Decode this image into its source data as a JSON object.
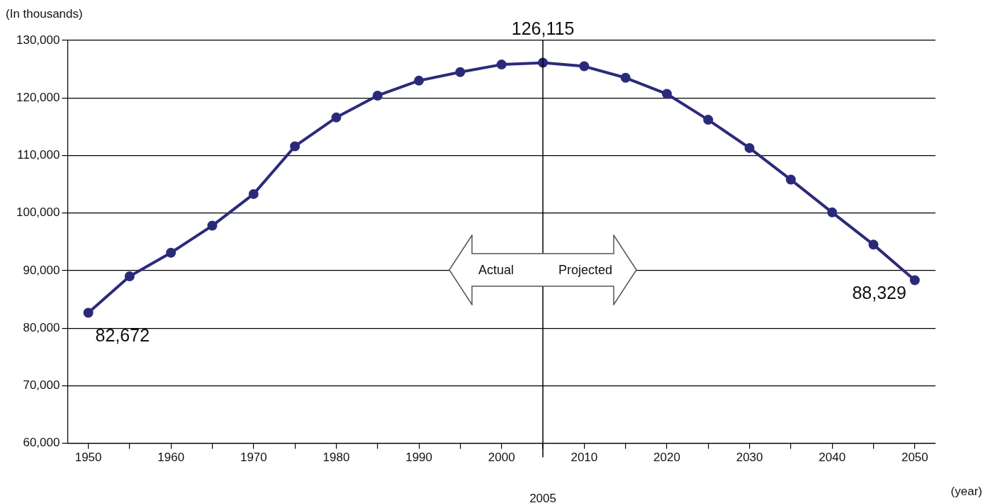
{
  "chart_data": {
    "type": "line",
    "ylabel": "(In thousands)",
    "xlabel": "(year)",
    "x": [
      1950,
      1955,
      1960,
      1965,
      1970,
      1975,
      1980,
      1985,
      1990,
      1995,
      2000,
      2005,
      2010,
      2015,
      2020,
      2025,
      2030,
      2035,
      2040,
      2045,
      2050
    ],
    "series": [
      {
        "color": "#2b2a7a",
        "values": [
          82672,
          89000,
          93100,
          97800,
          103300,
          111600,
          116600,
          120400,
          123000,
          124500,
          125800,
          126115,
          125500,
          123500,
          120700,
          116200,
          111300,
          105800,
          100100,
          94500,
          88329
        ],
        "value_labels": [
          "82,672",
          null,
          null,
          null,
          null,
          null,
          null,
          null,
          null,
          null,
          null,
          "126,115",
          null,
          null,
          null,
          null,
          null,
          null,
          null,
          null,
          "88,329"
        ]
      }
    ],
    "xlim": [
      1947.5,
      2052.5
    ],
    "xticks": [
      1950,
      {
        "value": 1955,
        "label": null
      },
      1960,
      {
        "value": 1965,
        "label": null
      },
      1970,
      {
        "value": 1975,
        "label": null
      },
      1980,
      {
        "value": 1985,
        "label": null
      },
      1990,
      {
        "value": 1995,
        "label": null
      },
      2000,
      {
        "value": 2005,
        "label": null
      },
      2010,
      {
        "value": 2015,
        "label": null
      },
      2020,
      {
        "value": 2025,
        "label": null
      },
      2030,
      {
        "value": 2035,
        "label": null
      },
      2040,
      {
        "value": 2045,
        "label": null
      },
      2050
    ],
    "ylim": [
      60000,
      130000
    ],
    "yticks": [
      {
        "value": 60000,
        "label": "60,000"
      },
      {
        "value": 70000,
        "label": "70,000"
      },
      {
        "value": 80000,
        "label": "80,000"
      },
      {
        "value": 90000,
        "label": "90,000"
      },
      {
        "value": 100000,
        "label": "100,000"
      },
      {
        "value": 110000,
        "label": "110,000"
      },
      {
        "value": 120000,
        "label": "120,000"
      },
      {
        "value": 130000,
        "label": "130,000"
      }
    ],
    "ref_lines": [
      {
        "axis": "x",
        "value": 2005,
        "label": "2005",
        "color": "#000000"
      }
    ],
    "annotations": [
      "Actual",
      "Projected"
    ],
    "grid": "y",
    "legend": false,
    "marker": "circle",
    "line_style": "solid"
  }
}
